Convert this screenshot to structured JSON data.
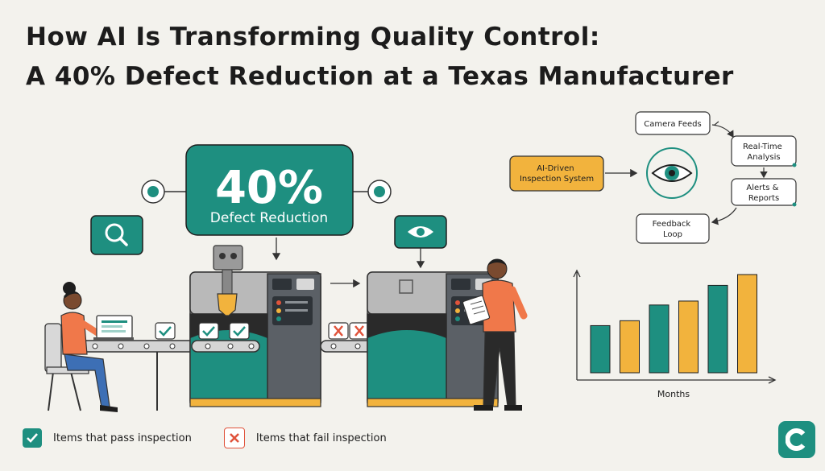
{
  "title": {
    "line1": "How AI Is Transforming Quality Control:",
    "line2": "A 40% Defect Reduction at a Texas Manufacturer"
  },
  "callout": {
    "value": "40%",
    "label": "Defect Reduction"
  },
  "flow": {
    "source": "AI-Driven\nInspection System",
    "nodes": [
      "Camera Feeds",
      "Real-Time\nAnalysis",
      "Alerts &\nReports",
      "Feedback\nLoop"
    ]
  },
  "chart_data": {
    "type": "bar",
    "xlabel": "Months",
    "ylabel": "",
    "categories": [
      "",
      "",
      "",
      "",
      "",
      ""
    ],
    "values": [
      48,
      53,
      69,
      73,
      89,
      100
    ],
    "colors": [
      "#1e8f80",
      "#f2b33d",
      "#1e8f80",
      "#f2b33d",
      "#1e8f80",
      "#f2b33d"
    ],
    "ylim": [
      0,
      100
    ],
    "grid": false
  },
  "legend": {
    "pass": "Items that pass inspection",
    "fail": "Items that fail inspection"
  },
  "colors": {
    "teal": "#1e8f80",
    "amber": "#f2b33d",
    "fail_red": "#e0533b",
    "background": "#f3f2ed"
  },
  "icons": [
    "search-icon",
    "eye-icon",
    "check-icon",
    "x-icon",
    "brand-logo"
  ]
}
